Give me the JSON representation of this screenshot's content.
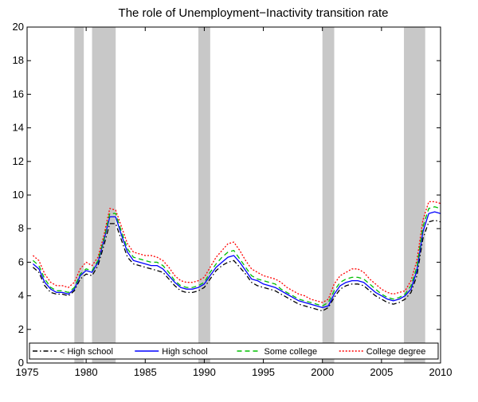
{
  "chart_data": {
    "type": "line",
    "title": "The role of Unemployment−Inactivity transition rate",
    "xlabel": "",
    "ylabel": "",
    "xlim": [
      1975,
      2010
    ],
    "ylim": [
      0,
      20
    ],
    "x_ticks": [
      "1975",
      "1980",
      "1985",
      "1990",
      "1995",
      "2000",
      "2005",
      "2010"
    ],
    "y_ticks": [
      "0",
      "2",
      "4",
      "6",
      "8",
      "10",
      "12",
      "14",
      "16",
      "18",
      "20"
    ],
    "grid": false,
    "legend_position": "bottom",
    "recession_bands": [
      [
        1979.0,
        1979.8
      ],
      [
        1980.5,
        1982.5
      ],
      [
        1989.5,
        1990.5
      ],
      [
        2000.0,
        2001.0
      ],
      [
        2006.9,
        2008.7
      ]
    ],
    "recession_color": "#c8c8c8",
    "x": [
      1975.5,
      1976.0,
      1976.5,
      1977.0,
      1977.5,
      1978.0,
      1978.5,
      1979.0,
      1979.5,
      1980.0,
      1980.5,
      1981.0,
      1981.5,
      1982.0,
      1982.5,
      1983.0,
      1983.5,
      1984.0,
      1984.5,
      1985.0,
      1985.5,
      1986.0,
      1986.5,
      1987.0,
      1987.5,
      1988.0,
      1988.5,
      1989.0,
      1989.5,
      1990.0,
      1990.5,
      1991.0,
      1991.5,
      1992.0,
      1992.5,
      1993.0,
      1993.5,
      1994.0,
      1994.5,
      1995.0,
      1995.5,
      1996.0,
      1996.5,
      1997.0,
      1997.5,
      1998.0,
      1998.5,
      1999.0,
      1999.5,
      2000.0,
      2000.5,
      2001.0,
      2001.5,
      2002.0,
      2002.5,
      2003.0,
      2003.5,
      2004.0,
      2004.5,
      2005.0,
      2005.5,
      2006.0,
      2006.5,
      2007.0,
      2007.5,
      2008.0,
      2008.5,
      2009.0,
      2009.5,
      2010.0
    ],
    "series": [
      {
        "name": "< High school",
        "color": "#000000",
        "dash": "6,3,1.5,3",
        "values": [
          5.7,
          5.4,
          4.6,
          4.2,
          4.1,
          4.1,
          4.0,
          4.3,
          5.0,
          5.3,
          5.2,
          5.8,
          7.0,
          8.3,
          8.3,
          7.3,
          6.3,
          5.9,
          5.8,
          5.7,
          5.6,
          5.5,
          5.4,
          5.0,
          4.6,
          4.3,
          4.2,
          4.2,
          4.3,
          4.5,
          5.0,
          5.5,
          5.8,
          6.0,
          6.1,
          5.7,
          5.3,
          4.8,
          4.6,
          4.5,
          4.4,
          4.3,
          4.1,
          3.9,
          3.7,
          3.5,
          3.4,
          3.3,
          3.2,
          3.1,
          3.3,
          3.9,
          4.4,
          4.6,
          4.7,
          4.7,
          4.6,
          4.3,
          4.0,
          3.8,
          3.6,
          3.5,
          3.6,
          3.8,
          4.2,
          5.2,
          7.4,
          8.4,
          8.5,
          8.4
        ]
      },
      {
        "name": "High school",
        "color": "#0000ff",
        "dash": "",
        "values": [
          5.9,
          5.6,
          4.8,
          4.4,
          4.2,
          4.2,
          4.1,
          4.4,
          5.2,
          5.5,
          5.4,
          6.0,
          7.3,
          8.7,
          8.7,
          7.6,
          6.6,
          6.1,
          6.0,
          5.9,
          5.8,
          5.8,
          5.6,
          5.2,
          4.8,
          4.5,
          4.4,
          4.4,
          4.5,
          4.7,
          5.2,
          5.7,
          6.0,
          6.3,
          6.4,
          6.0,
          5.5,
          5.0,
          4.9,
          4.7,
          4.6,
          4.5,
          4.3,
          4.1,
          3.9,
          3.7,
          3.6,
          3.5,
          3.4,
          3.3,
          3.4,
          4.1,
          4.6,
          4.8,
          4.9,
          4.9,
          4.8,
          4.5,
          4.2,
          4.0,
          3.8,
          3.7,
          3.8,
          4.0,
          4.4,
          5.5,
          7.8,
          8.9,
          9.0,
          8.9
        ]
      },
      {
        "name": "Some college",
        "color": "#00c000",
        "dash": "6,4",
        "values": [
          6.1,
          5.8,
          5.0,
          4.5,
          4.3,
          4.3,
          4.2,
          4.5,
          5.3,
          5.6,
          5.5,
          6.1,
          7.4,
          8.9,
          8.9,
          7.8,
          6.8,
          6.3,
          6.2,
          6.1,
          6.0,
          6.0,
          5.8,
          5.4,
          4.9,
          4.6,
          4.5,
          4.5,
          4.6,
          4.8,
          5.4,
          5.9,
          6.3,
          6.6,
          6.7,
          6.2,
          5.7,
          5.2,
          5.0,
          4.9,
          4.8,
          4.7,
          4.4,
          4.2,
          4.0,
          3.8,
          3.7,
          3.6,
          3.5,
          3.4,
          3.6,
          4.3,
          4.8,
          5.0,
          5.1,
          5.1,
          5.0,
          4.7,
          4.4,
          4.1,
          3.9,
          3.8,
          3.9,
          4.1,
          4.6,
          5.7,
          8.1,
          9.2,
          9.3,
          9.2
        ]
      },
      {
        "name": "College degree",
        "color": "#ff0000",
        "dash": "2,2",
        "values": [
          6.4,
          6.1,
          5.3,
          4.8,
          4.6,
          4.6,
          4.5,
          4.8,
          5.6,
          6.0,
          5.8,
          6.3,
          7.6,
          9.2,
          9.1,
          8.1,
          7.1,
          6.6,
          6.5,
          6.4,
          6.4,
          6.3,
          6.1,
          5.7,
          5.2,
          4.9,
          4.8,
          4.8,
          4.9,
          5.1,
          5.7,
          6.3,
          6.7,
          7.1,
          7.2,
          6.7,
          6.1,
          5.6,
          5.4,
          5.2,
          5.1,
          5.0,
          4.8,
          4.5,
          4.3,
          4.1,
          4.0,
          3.8,
          3.7,
          3.6,
          3.8,
          4.7,
          5.2,
          5.4,
          5.6,
          5.6,
          5.4,
          5.0,
          4.7,
          4.4,
          4.2,
          4.1,
          4.2,
          4.3,
          4.9,
          6.1,
          8.5,
          9.6,
          9.6,
          9.5
        ]
      }
    ]
  }
}
